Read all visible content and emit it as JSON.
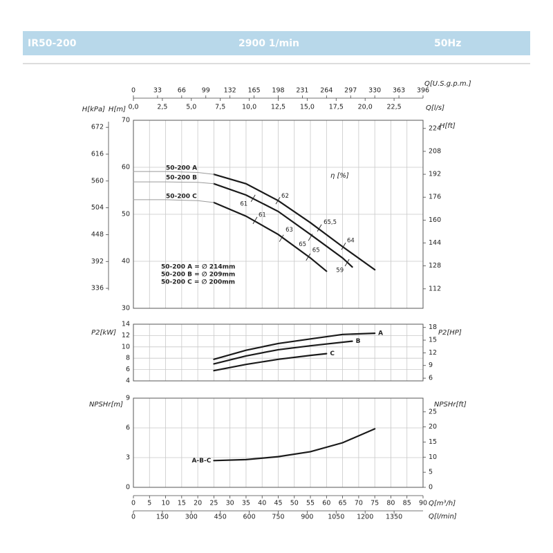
{
  "header": {
    "model": "IR50-200",
    "speed": "2900 1/min",
    "frequency": "50Hz"
  },
  "chart_data": [
    {
      "type": "line",
      "xlim": [
        0,
        90
      ],
      "x2label": "Q[U.S.g.p.m.]",
      "x2lim": [
        0,
        396
      ],
      "x2ticks": [
        0,
        33,
        66,
        99,
        132,
        165,
        198,
        231,
        264,
        297,
        330,
        363,
        396
      ],
      "x3label": "Q[l/s]",
      "x3lim": [
        0,
        25
      ],
      "x3ticks": [
        {
          "value": 0,
          "label": "0,0"
        },
        {
          "value": 2.5,
          "label": "2,5"
        },
        {
          "value": 5,
          "label": "5,0"
        },
        {
          "value": 7.5,
          "label": "7,5"
        },
        {
          "value": 10,
          "label": "10,0"
        },
        {
          "value": 12.5,
          "label": "12,5"
        },
        {
          "value": 15,
          "label": "15,0"
        },
        {
          "value": 17.5,
          "label": "17,5"
        },
        {
          "value": 20,
          "label": "20,0"
        },
        {
          "value": 22.5,
          "label": "22,5"
        }
      ],
      "ylabel": "H[m]",
      "ylim": [
        30,
        70
      ],
      "yticks": [
        30,
        40,
        50,
        60,
        70
      ],
      "y3label": "H[kPa]",
      "y3lim": [
        294.3,
        686.7
      ],
      "y3ticks": [
        336,
        392,
        448,
        504,
        560,
        616,
        672
      ],
      "y2label": "H[ft]",
      "y2lim": [
        98.4,
        229.7
      ],
      "y2ticks": [
        112,
        128,
        144,
        160,
        176,
        192,
        208,
        224
      ],
      "grid": true,
      "series": [
        {
          "name": "50-200 A",
          "color": "#1a1a1a",
          "width": 2.2,
          "x": [
            25,
            35,
            45,
            55,
            65,
            75
          ],
          "values": [
            58.5,
            56.5,
            52.9,
            48.2,
            43.1,
            38.2
          ]
        },
        {
          "name": "50-200 B",
          "color": "#1a1a1a",
          "width": 2.2,
          "x": [
            25,
            35,
            45,
            55,
            65,
            68
          ],
          "values": [
            56.5,
            54.1,
            50.6,
            45.7,
            40.7,
            38.8
          ]
        },
        {
          "name": "50-200 C",
          "color": "#1a1a1a",
          "width": 2.2,
          "x": [
            25,
            35,
            45,
            55,
            60
          ],
          "values": [
            52.5,
            49.6,
            45.7,
            40.7,
            37.9
          ]
        },
        {
          "color": "#9a9a9a",
          "width": 1,
          "x": [
            0,
            10,
            20,
            25
          ],
          "values": [
            59.1,
            59.1,
            58.9,
            58.5
          ]
        },
        {
          "color": "#9a9a9a",
          "width": 1,
          "x": [
            0,
            10,
            20,
            25
          ],
          "values": [
            56.9,
            56.9,
            56.8,
            56.5
          ]
        },
        {
          "color": "#9a9a9a",
          "width": 1,
          "x": [
            0,
            10,
            20,
            25
          ],
          "values": [
            53.1,
            53.1,
            52.9,
            52.5
          ]
        }
      ],
      "efficiency_label": "η [%]",
      "efficiency": [
        {
          "x": 37.2,
          "y": 53.4,
          "value": 61
        },
        {
          "x": 44.9,
          "y": 52.9,
          "value": 62
        },
        {
          "x": 37.8,
          "y": 48.7,
          "value": 61
        },
        {
          "x": 46.0,
          "y": 44.9,
          "value": 63
        },
        {
          "x": 57.8,
          "y": 47.1,
          "value": 65.5,
          "label": "65,5"
        },
        {
          "x": 55.0,
          "y": 45.1,
          "value": 65
        },
        {
          "x": 65.3,
          "y": 43.2,
          "value": 64
        },
        {
          "x": 54.3,
          "y": 40.9,
          "value": 65
        },
        {
          "x": 66.4,
          "y": 39.7,
          "value": 59
        }
      ],
      "annotations": [
        "50-200 A = ∅ 214mm",
        "50-200 B = ∅ 209mm",
        "50-200 C = ∅ 200mm"
      ]
    },
    {
      "type": "line",
      "xlim": [
        0,
        90
      ],
      "ylabel": "P2[kW]",
      "ylim": [
        4,
        14
      ],
      "yticks": [
        4,
        6,
        8,
        10,
        12,
        14
      ],
      "y2label": "P2[HP]",
      "y2lim": [
        5.36,
        18.77
      ],
      "y2ticks": [
        6,
        9,
        12,
        15,
        18
      ],
      "grid": true,
      "series": [
        {
          "name": "A",
          "color": "#1a1a1a",
          "width": 2.2,
          "x": [
            25,
            35,
            45,
            55,
            65,
            75
          ],
          "values": [
            7.8,
            9.4,
            10.6,
            11.4,
            12.2,
            12.4
          ]
        },
        {
          "name": "B",
          "color": "#1a1a1a",
          "width": 2.2,
          "x": [
            25,
            35,
            45,
            55,
            68
          ],
          "values": [
            7.0,
            8.4,
            9.5,
            10.2,
            11.0
          ]
        },
        {
          "name": "C",
          "color": "#1a1a1a",
          "width": 2.2,
          "x": [
            25,
            35,
            45,
            55,
            60
          ],
          "values": [
            5.8,
            6.9,
            7.8,
            8.5,
            8.8
          ]
        }
      ]
    },
    {
      "type": "line",
      "xlabel": "Q[m³/h]",
      "xlim": [
        0,
        90
      ],
      "xticks": [
        0,
        5,
        10,
        15,
        20,
        25,
        30,
        35,
        40,
        45,
        50,
        55,
        60,
        65,
        70,
        75,
        80,
        85,
        90
      ],
      "x2label": "Q[l/min]",
      "x2lim": [
        0,
        1500
      ],
      "x2ticks": [
        0,
        150,
        300,
        450,
        600,
        750,
        900,
        1050,
        1200,
        1350
      ],
      "ylabel": "NPSHr[m]",
      "ylim": [
        0,
        9
      ],
      "yticks": [
        0,
        3,
        6,
        9
      ],
      "y2label": "NPSHr[ft]",
      "y2lim": [
        0,
        29.53
      ],
      "y2ticks": [
        0,
        5,
        10,
        15,
        20,
        25
      ],
      "grid": true,
      "series": [
        {
          "name": "A-B-C",
          "color": "#1a1a1a",
          "width": 2.2,
          "x": [
            25,
            35,
            45,
            55,
            65,
            75
          ],
          "values": [
            2.7,
            2.8,
            3.1,
            3.6,
            4.5,
            5.9
          ]
        }
      ]
    }
  ]
}
